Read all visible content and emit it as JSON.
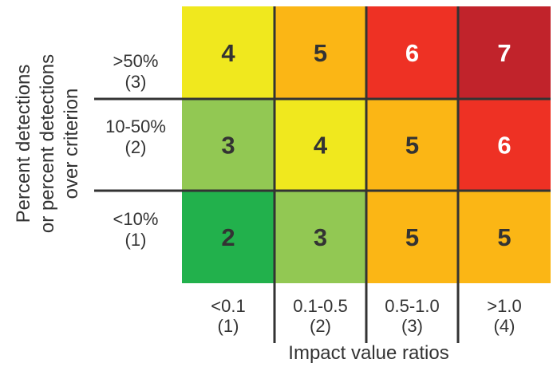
{
  "chart_data": {
    "type": "heatmap",
    "title": "",
    "xlabel": "Impact value ratios",
    "ylabel_lines": [
      "Percent detections",
      "or percent detections",
      "over criterion"
    ],
    "x_categories": [
      {
        "range": "<0.1",
        "score": "(1)"
      },
      {
        "range": "0.1-0.5",
        "score": "(2)"
      },
      {
        "range": "0.5-1.0",
        "score": "(3)"
      },
      {
        "range": ">1.0",
        "score": "(4)"
      }
    ],
    "y_categories": [
      {
        "range": ">50%",
        "score": "(3)"
      },
      {
        "range": "10-50%",
        "score": "(2)"
      },
      {
        "range": "<10%",
        "score": "(1)"
      }
    ],
    "values": [
      [
        4,
        5,
        6,
        7
      ],
      [
        3,
        4,
        5,
        6
      ],
      [
        2,
        3,
        5,
        5
      ]
    ],
    "color_scale": {
      "2": "#22b14c",
      "3": "#92c853",
      "4": "#f0e81e",
      "5": "#fbb615",
      "6": "#ee3124",
      "7": "#c1232b"
    },
    "value_text_colors": {
      "2": "#333333",
      "3": "#333333",
      "4": "#333333",
      "5": "#333333",
      "6": "#ffffff",
      "7": "#ffffff"
    }
  }
}
